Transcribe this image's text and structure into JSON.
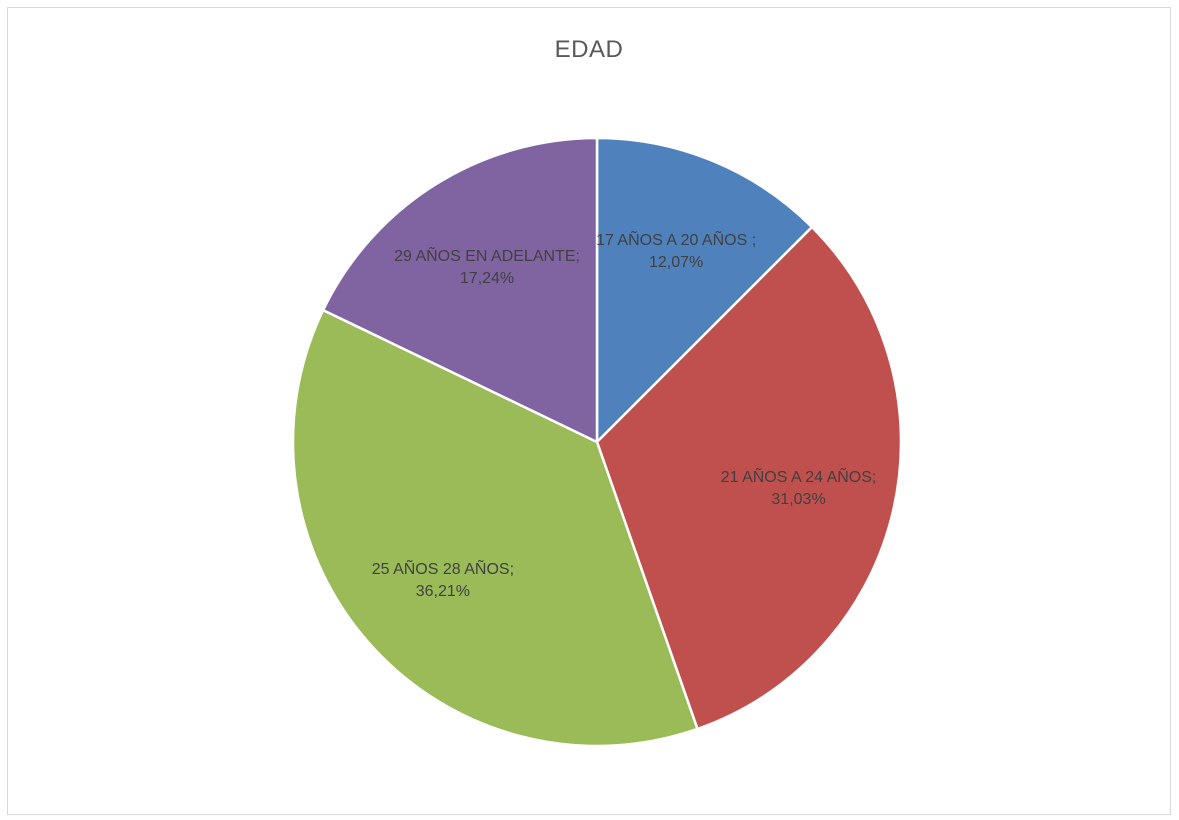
{
  "chart_data": {
    "type": "pie",
    "title": "EDAD",
    "slices": [
      {
        "name": "17 AÑOS A 20 AÑOS",
        "value": 12.07,
        "label_name": "17 AÑOS A 20 AÑOS ;",
        "label_value": "12,07%",
        "color": "#4f81bd"
      },
      {
        "name": "21 AÑOS A 24 AÑOS",
        "value": 31.03,
        "label_name": "21 AÑOS A 24 AÑOS;",
        "label_value": "31,03%",
        "color": "#c0504d"
      },
      {
        "name": "25 AÑOS 28 AÑOS",
        "value": 36.21,
        "label_name": "25 AÑOS 28 AÑOS;",
        "label_value": "36,21%",
        "color": "#9bbb59"
      },
      {
        "name": "29 AÑOS EN ADELANTE",
        "value": 17.24,
        "label_name": "29 AÑOS EN ADELANTE;",
        "label_value": "17,24%",
        "color": "#8064a2"
      }
    ],
    "start_angle": "12 o'clock",
    "direction": "clockwise",
    "legend": "none"
  }
}
